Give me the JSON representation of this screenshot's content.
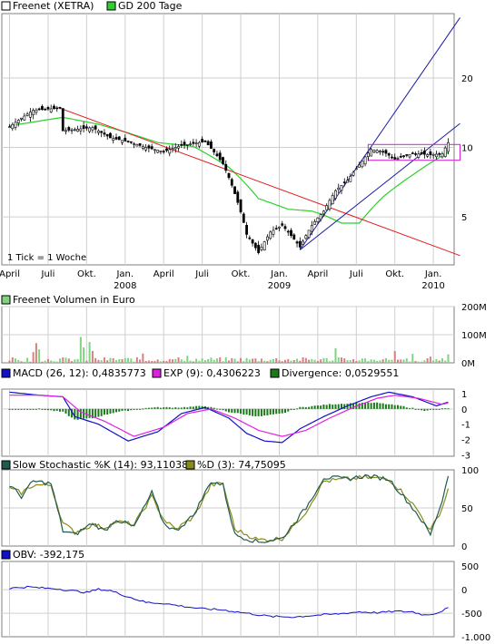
{
  "colors": {
    "background": "#ffffff",
    "frame": "#7f7f7f",
    "grid": "#cfcfcf",
    "candle_up": "#ffffff",
    "candle_down": "#000000",
    "gd200": "#2ed02e",
    "trend_red": "#e02020",
    "trend_blue": "#1a1aa8",
    "channel": "#d020d0",
    "vol_up": "#7fd47f",
    "vol_down": "#d88080",
    "macd": "#1010c8",
    "exp": "#e020e0",
    "divergence": "#1a7a1a",
    "stoch_k": "#1f5a4f",
    "stoch_d": "#8a8a1a",
    "obv": "#1010c8"
  },
  "legend": {
    "price_series": "Freenet (XETRA)",
    "gd200": "GD 200 Tage",
    "volume": "Freenet Volumen in Euro",
    "macd": "MACD (26, 12): 0,4835773",
    "exp": "EXP (9): 0,4306223",
    "divergence": "Divergence: 0,0529551",
    "stoch_k": "Slow Stochastic %K (14): 93,11038",
    "stoch_d": "%D (3): 74,75095",
    "obv": "OBV: -392,175"
  },
  "tick_note": "1 Tick = 1 Woche",
  "x_axis": {
    "labels": [
      {
        "label": "April",
        "week": 0
      },
      {
        "label": "Juli",
        "week": 13
      },
      {
        "label": "Okt.",
        "week": 26
      },
      {
        "label": "Jan.",
        "week": 39
      },
      {
        "label": "April",
        "week": 52
      },
      {
        "label": "Juli",
        "week": 65
      },
      {
        "label": "Okt.",
        "week": 78
      },
      {
        "label": "Jan.",
        "week": 91
      },
      {
        "label": "April",
        "week": 104
      },
      {
        "label": "Juli",
        "week": 117
      },
      {
        "label": "Okt.",
        "week": 130
      },
      {
        "label": "Jan.",
        "week": 143
      }
    ],
    "years": [
      {
        "label": "2008",
        "week": 39
      },
      {
        "label": "2009",
        "week": 91
      },
      {
        "label": "2010",
        "week": 143
      }
    ]
  },
  "y_axes": {
    "price": [
      "20",
      "10",
      "5"
    ],
    "volume": [
      "200M",
      "100M",
      "0M"
    ],
    "macd": [
      "1",
      "0",
      "-1",
      "-2",
      "-3"
    ],
    "stochastic": [
      "100",
      "50",
      "0"
    ],
    "obv": [
      "500",
      "0",
      "-500",
      "-1.000"
    ]
  },
  "chart_data": [
    {
      "type": "line",
      "title": "Freenet (XETRA)",
      "x_unit": "week",
      "y_scale": "log",
      "ylim": [
        3.1,
        38
      ],
      "price_anchors": [
        [
          0,
          12.3
        ],
        [
          8,
          14.5
        ],
        [
          17,
          14.8
        ],
        [
          18,
          11.8
        ],
        [
          28,
          12.2
        ],
        [
          34,
          11
        ],
        [
          40,
          10.6
        ],
        [
          46,
          10
        ],
        [
          52,
          9.6
        ],
        [
          58,
          10.2
        ],
        [
          66,
          10.6
        ],
        [
          72,
          8.5
        ],
        [
          76,
          6.3
        ],
        [
          80,
          4.2
        ],
        [
          84,
          3.5
        ],
        [
          88,
          4.3
        ],
        [
          92,
          4.6
        ],
        [
          96,
          4.0
        ],
        [
          98,
          3.7
        ],
        [
          102,
          4.6
        ],
        [
          106,
          5.3
        ],
        [
          110,
          6.5
        ],
        [
          114,
          7.2
        ],
        [
          118,
          8.4
        ],
        [
          122,
          9.8
        ],
        [
          126,
          9.6
        ],
        [
          130,
          8.9
        ],
        [
          136,
          9.4
        ],
        [
          142,
          9.3
        ],
        [
          146,
          9.4
        ],
        [
          148,
          10.5
        ]
      ],
      "series": [
        {
          "name": "Freenet (XETRA)",
          "type": "candlestick"
        },
        {
          "name": "GD 200 Tage",
          "type": "line",
          "anchors": [
            [
              0,
              12.4
            ],
            [
              18,
              13.5
            ],
            [
              30,
              12.6
            ],
            [
              50,
              10.5
            ],
            [
              62,
              10.1
            ],
            [
              74,
              8.2
            ],
            [
              84,
              6.0
            ],
            [
              94,
              5.4
            ],
            [
              102,
              5.3
            ],
            [
              106,
              5.1
            ],
            [
              112,
              4.7
            ],
            [
              118,
              4.7
            ],
            [
              126,
              6.1
            ],
            [
              136,
              7.6
            ],
            [
              146,
              9.2
            ],
            [
              148,
              9.5
            ]
          ]
        }
      ],
      "trendlines": [
        {
          "color": "trend_red",
          "from": [
            17,
            14.8
          ],
          "to": [
            152,
            3.4
          ]
        },
        {
          "color": "trend_blue",
          "from": [
            98,
            3.6
          ],
          "to": [
            152,
            36.5
          ]
        },
        {
          "color": "trend_blue",
          "from": [
            98,
            3.6
          ],
          "to": [
            152,
            12.7
          ]
        }
      ],
      "channel": {
        "from_week": 121,
        "to_week": 152,
        "upper": 10.3,
        "lower": 8.8
      }
    },
    {
      "type": "bar",
      "title": "Freenet Volumen in Euro",
      "x_unit": "week",
      "ylim": [
        0,
        200
      ],
      "unit": "M",
      "spikes": [
        [
          8,
          38
        ],
        [
          9,
          70
        ],
        [
          10,
          48
        ],
        [
          24,
          92
        ],
        [
          25,
          55
        ],
        [
          27,
          74
        ],
        [
          28,
          42
        ],
        [
          45,
          33
        ],
        [
          60,
          25
        ],
        [
          110,
          52
        ],
        [
          130,
          42
        ],
        [
          136,
          32
        ],
        [
          142,
          22
        ],
        [
          148,
          30
        ]
      ]
    },
    {
      "type": "line",
      "title": "MACD",
      "x_unit": "week",
      "ylim": [
        -3.1,
        1.3
      ],
      "series": [
        {
          "name": "MACD (26, 12)",
          "anchors": [
            [
              0,
              1.1
            ],
            [
              10,
              0.9
            ],
            [
              18,
              0.8
            ],
            [
              22,
              -0.5
            ],
            [
              30,
              -1.0
            ],
            [
              40,
              -2.1
            ],
            [
              50,
              -1.5
            ],
            [
              58,
              -0.3
            ],
            [
              66,
              0.1
            ],
            [
              74,
              -0.6
            ],
            [
              80,
              -1.6
            ],
            [
              86,
              -2.1
            ],
            [
              92,
              -2.2
            ],
            [
              98,
              -1.3
            ],
            [
              106,
              -0.5
            ],
            [
              114,
              0.2
            ],
            [
              122,
              0.8
            ],
            [
              128,
              1.1
            ],
            [
              136,
              0.8
            ],
            [
              144,
              0.2
            ],
            [
              148,
              0.45
            ]
          ]
        },
        {
          "name": "EXP (9)",
          "anchors": [
            [
              0,
              0.9
            ],
            [
              10,
              0.9
            ],
            [
              18,
              0.8
            ],
            [
              24,
              -0.2
            ],
            [
              32,
              -0.8
            ],
            [
              42,
              -1.8
            ],
            [
              52,
              -1.2
            ],
            [
              60,
              -0.3
            ],
            [
              68,
              0.0
            ],
            [
              76,
              -0.6
            ],
            [
              84,
              -1.4
            ],
            [
              92,
              -1.8
            ],
            [
              100,
              -1.4
            ],
            [
              108,
              -0.6
            ],
            [
              116,
              0.1
            ],
            [
              124,
              0.7
            ],
            [
              130,
              0.9
            ],
            [
              138,
              0.7
            ],
            [
              146,
              0.3
            ],
            [
              148,
              0.4
            ]
          ]
        },
        {
          "name": "Divergence",
          "type": "bar",
          "anchors": [
            [
              0,
              0.0
            ],
            [
              10,
              0.0
            ],
            [
              18,
              -0.2
            ],
            [
              22,
              -0.7
            ],
            [
              28,
              -0.6
            ],
            [
              36,
              -0.2
            ],
            [
              48,
              0.1
            ],
            [
              58,
              0.1
            ],
            [
              66,
              0.2
            ],
            [
              74,
              -0.2
            ],
            [
              84,
              -0.5
            ],
            [
              92,
              -0.3
            ],
            [
              98,
              0.1
            ],
            [
              108,
              0.3
            ],
            [
              118,
              0.4
            ],
            [
              124,
              0.4
            ],
            [
              132,
              0.2
            ],
            [
              140,
              -0.1
            ],
            [
              148,
              0.05
            ]
          ]
        }
      ]
    },
    {
      "type": "line",
      "title": "Slow Stochastic",
      "x_unit": "week",
      "ylim": [
        0,
        100
      ],
      "series": [
        {
          "name": "Slow Stochastic %K (14)",
          "anchors": [
            [
              0,
              80
            ],
            [
              4,
              65
            ],
            [
              8,
              85
            ],
            [
              14,
              82
            ],
            [
              18,
              20
            ],
            [
              22,
              15
            ],
            [
              28,
              30
            ],
            [
              32,
              20
            ],
            [
              36,
              35
            ],
            [
              42,
              25
            ],
            [
              48,
              70
            ],
            [
              52,
              30
            ],
            [
              56,
              20
            ],
            [
              62,
              40
            ],
            [
              68,
              85
            ],
            [
              72,
              80
            ],
            [
              76,
              15
            ],
            [
              84,
              5
            ],
            [
              92,
              10
            ],
            [
              100,
              50
            ],
            [
              106,
              90
            ],
            [
              114,
              88
            ],
            [
              120,
              92
            ],
            [
              128,
              88
            ],
            [
              134,
              60
            ],
            [
              138,
              40
            ],
            [
              142,
              15
            ],
            [
              146,
              60
            ],
            [
              148,
              93
            ]
          ]
        },
        {
          "name": "%D (3)",
          "anchors": [
            [
              0,
              75
            ],
            [
              4,
              70
            ],
            [
              8,
              80
            ],
            [
              14,
              80
            ],
            [
              18,
              30
            ],
            [
              22,
              18
            ],
            [
              28,
              28
            ],
            [
              32,
              24
            ],
            [
              36,
              32
            ],
            [
              42,
              28
            ],
            [
              48,
              65
            ],
            [
              52,
              35
            ],
            [
              56,
              22
            ],
            [
              62,
              38
            ],
            [
              68,
              80
            ],
            [
              72,
              82
            ],
            [
              76,
              22
            ],
            [
              84,
              8
            ],
            [
              92,
              10
            ],
            [
              100,
              45
            ],
            [
              106,
              85
            ],
            [
              114,
              88
            ],
            [
              120,
              90
            ],
            [
              128,
              88
            ],
            [
              134,
              65
            ],
            [
              138,
              45
            ],
            [
              142,
              20
            ],
            [
              146,
              50
            ],
            [
              148,
              75
            ]
          ]
        }
      ]
    },
    {
      "type": "line",
      "title": "OBV",
      "x_unit": "week",
      "ylim": [
        -1000,
        600
      ],
      "series": [
        {
          "name": "OBV",
          "anchors": [
            [
              0,
              30
            ],
            [
              6,
              60
            ],
            [
              10,
              40
            ],
            [
              16,
              20
            ],
            [
              22,
              -30
            ],
            [
              26,
              -60
            ],
            [
              30,
              10
            ],
            [
              34,
              -20
            ],
            [
              40,
              -150
            ],
            [
              46,
              -270
            ],
            [
              52,
              -290
            ],
            [
              56,
              -330
            ],
            [
              64,
              -400
            ],
            [
              72,
              -430
            ],
            [
              80,
              -500
            ],
            [
              88,
              -570
            ],
            [
              96,
              -580
            ],
            [
              104,
              -540
            ],
            [
              110,
              -520
            ],
            [
              118,
              -470
            ],
            [
              124,
              -490
            ],
            [
              130,
              -460
            ],
            [
              136,
              -470
            ],
            [
              140,
              -540
            ],
            [
              144,
              -500
            ],
            [
              148,
              -390
            ]
          ]
        }
      ]
    }
  ]
}
